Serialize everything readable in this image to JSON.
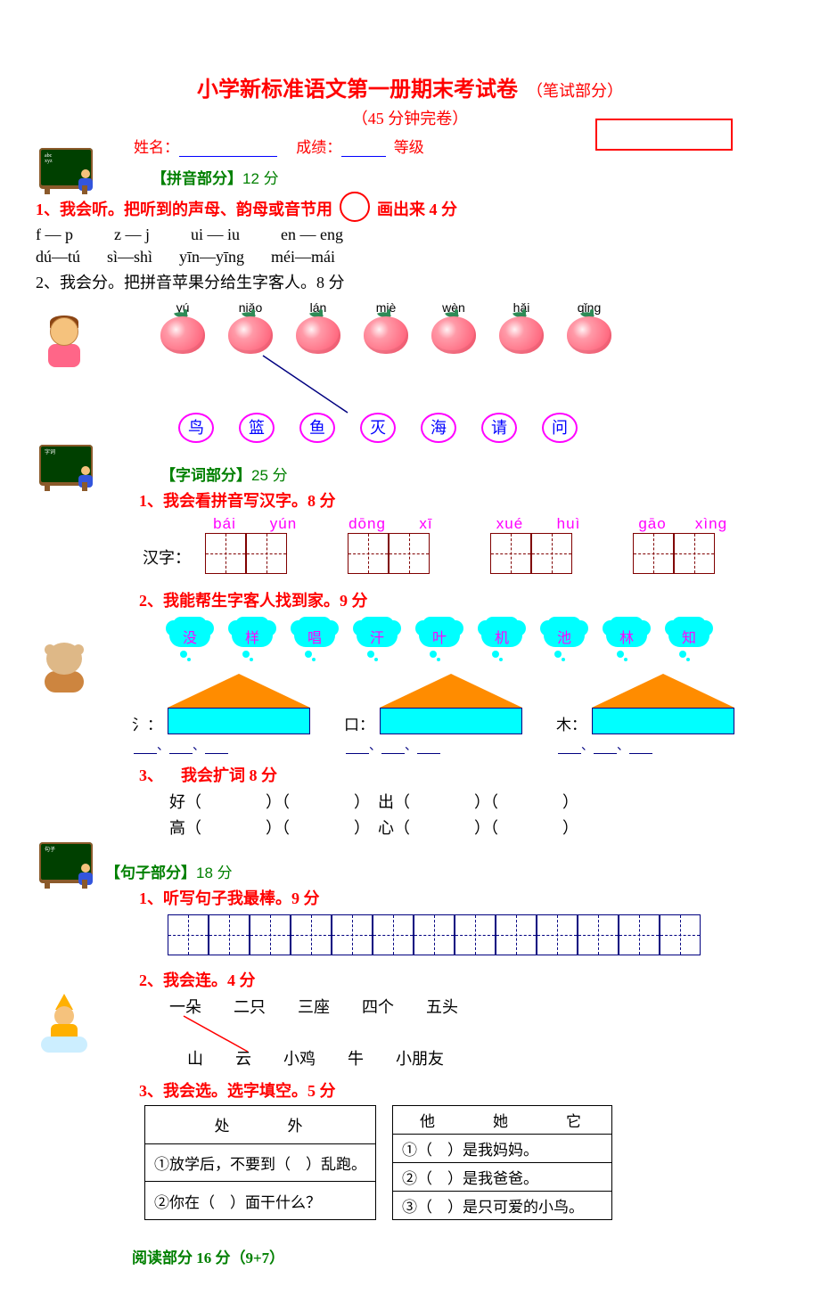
{
  "title": {
    "main": "小学新标准语文第一册期末考试卷",
    "sub": "（笔试部分）",
    "time": "（45 分钟完卷）",
    "name_label": "姓名：",
    "score_label": "成绩：",
    "grade_label": "等级",
    "colors": {
      "red": "#ff0000",
      "green": "#008000",
      "blue": "#0000ff",
      "magenta": "#ff00ff"
    }
  },
  "pinyin_section": {
    "label": "【拼音部分】",
    "points": "12 分",
    "q1": {
      "prefix": "1、我会听。把听到的声母、韵母或音节用",
      "suffix": "画出来 4 分",
      "row1": [
        "f — p",
        "z — j",
        "ui — iu",
        "en — eng"
      ],
      "row2": [
        "dú—tú",
        "sì—shì",
        "yīn—yīng",
        "méi—mái"
      ]
    },
    "q2": {
      "text": "2、我会分。把拼音苹果分给生字客人。8 分",
      "apples": [
        "yú",
        "niǎo",
        "lán",
        "miè",
        "wèn",
        "hǎi",
        "qǐng"
      ],
      "chars": [
        "鸟",
        "篮",
        "鱼",
        "灭",
        "海",
        "请",
        "问"
      ],
      "apple_fill": "#ff6b81",
      "char_border": "#ff00ff",
      "char_text": "#0000ff",
      "example_line": {
        "from_apple_index": 1,
        "to_char_index": 2,
        "color": "#000080"
      }
    }
  },
  "word_section": {
    "label": "【字词部分】",
    "points": "25 分",
    "q1": {
      "text": "1、我会看拼音写汉字。8 分",
      "prefix": "汉字：",
      "groups": [
        {
          "py": [
            "bái",
            "yún"
          ]
        },
        {
          "py": [
            "dōng",
            "xī"
          ]
        },
        {
          "py": [
            "xué",
            "huì"
          ]
        },
        {
          "py": [
            "gāo",
            "xìng"
          ]
        }
      ],
      "box_border": "#800000"
    },
    "q2": {
      "text": "2、我能帮生字客人找到家。9 分",
      "clouds": [
        "没",
        "样",
        "唱",
        "汗",
        "叶",
        "机",
        "池",
        "林",
        "知"
      ],
      "cloud_fill": "#00ffff",
      "cloud_text": "#ff00ff",
      "houses": [
        {
          "key": "氵：",
          "blanks": 3
        },
        {
          "key": "口：",
          "blanks": 3
        },
        {
          "key": "木：",
          "blanks": 3
        }
      ],
      "roof_fill": "#ff8c00",
      "wall_fill": "#00ffff"
    },
    "q3": {
      "label_num": "3、",
      "label_text": "我会扩词 8 分",
      "rows": [
        {
          "ch": "好",
          "pair": "出"
        },
        {
          "ch": "高",
          "pair": "心"
        }
      ]
    }
  },
  "sentence_section": {
    "label": "【句子部分】",
    "points": "18 分",
    "q1": {
      "text": "1、听写句子我最棒。9 分",
      "cells": 13,
      "box_border": "#000080"
    },
    "q2": {
      "text": "2、我会连。4 分",
      "top": [
        "一朵",
        "二只",
        "三座",
        "四个",
        "五头"
      ],
      "bottom": [
        "山",
        "云",
        "小鸡",
        "牛",
        "小朋友"
      ],
      "example_line": {
        "from_top_index": 0,
        "to_bottom_index": 1,
        "color": "#ff0000"
      }
    },
    "q3": {
      "text": "3、我会选。选字填空。5 分",
      "left": {
        "header": "处　外",
        "rows": [
          "①放学后，不要到（　）乱跑。",
          "②你在（　）面干什么？"
        ]
      },
      "right": {
        "header": "他　她　它",
        "rows": [
          "①（　）是我妈妈。",
          "②（　）是我爸爸。",
          "③（　）是只可爱的小鸟。"
        ]
      }
    }
  },
  "reading_label": "阅读部分 16 分（9+7）"
}
